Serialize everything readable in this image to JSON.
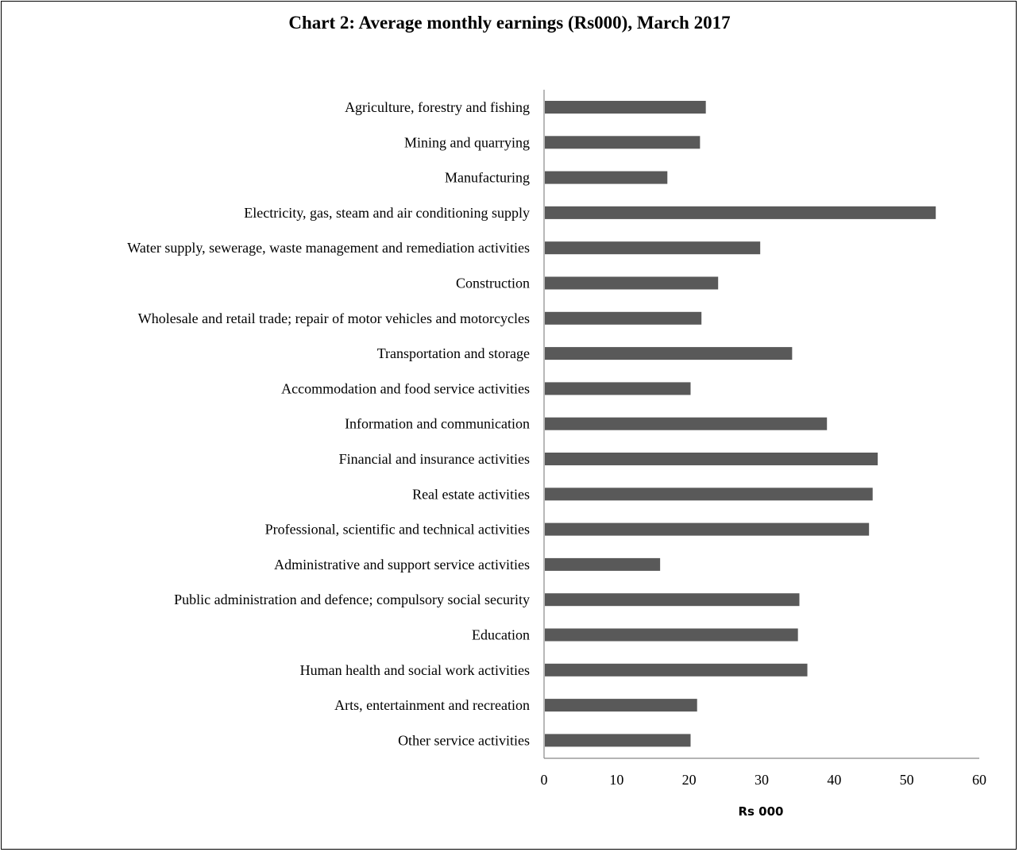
{
  "chart_data": {
    "type": "bar",
    "orientation": "horizontal",
    "title": "Chart 2: Average monthly earnings (Rs000), March 2017",
    "xlabel": "Rs 000",
    "ylabel": "",
    "xlim": [
      0,
      60
    ],
    "x_ticks": [
      "0",
      "10",
      "20",
      "30",
      "40",
      "50",
      "60"
    ],
    "grid": false,
    "bar_color": "#595959",
    "categories": [
      "Agriculture, forestry and fishing",
      "Mining and quarrying",
      "Manufacturing",
      "Electricity, gas, steam and air conditioning supply",
      "Water supply, sewerage, waste management and remediation activities",
      "Construction",
      "Wholesale and retail trade; repair of motor vehicles and motorcycles",
      "Transportation and storage",
      "Accommodation and food service activities",
      "Information and communication",
      "Financial and insurance activities",
      "Real estate activities",
      "Professional, scientific and technical activities",
      "Administrative and support service activities",
      "Public administration and defence; compulsory social security",
      "Education",
      "Human health and social work activities",
      "Arts, entertainment and recreation",
      "Other service activities"
    ],
    "values": [
      22.3,
      21.5,
      17.0,
      54.0,
      29.8,
      24.0,
      21.7,
      34.2,
      20.2,
      39.0,
      46.0,
      45.3,
      44.8,
      16.0,
      35.2,
      35.0,
      36.3,
      21.1,
      20.2
    ]
  }
}
